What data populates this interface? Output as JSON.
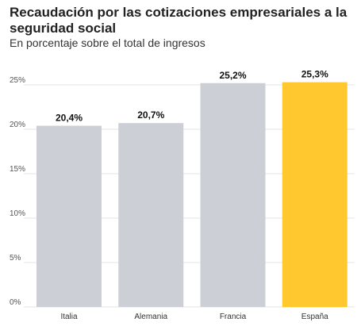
{
  "chart_data": {
    "type": "bar",
    "title": "Recaudación por las cotizaciones empresariales a la seguridad social",
    "subtitle": "En porcentaje sobre el total de ingresos",
    "xlabel": "",
    "ylabel": "",
    "categories": [
      "Italia",
      "Alemania",
      "Francia",
      "España"
    ],
    "values": [
      20.4,
      20.7,
      25.2,
      25.3
    ],
    "value_labels": [
      "20,4%",
      "20,7%",
      "25,2%",
      "25,3%"
    ],
    "ylim": [
      0,
      25
    ],
    "yticks": [
      0,
      5,
      10,
      15,
      20,
      25
    ],
    "ytick_labels": [
      "0%",
      "5%",
      "10%",
      "15%",
      "20%",
      "25%"
    ],
    "grid": true,
    "colors": {
      "default": "#ccd0d6",
      "highlight": "#ffc82e",
      "highlight_category": "España",
      "grid": "#e6e6e6"
    }
  }
}
